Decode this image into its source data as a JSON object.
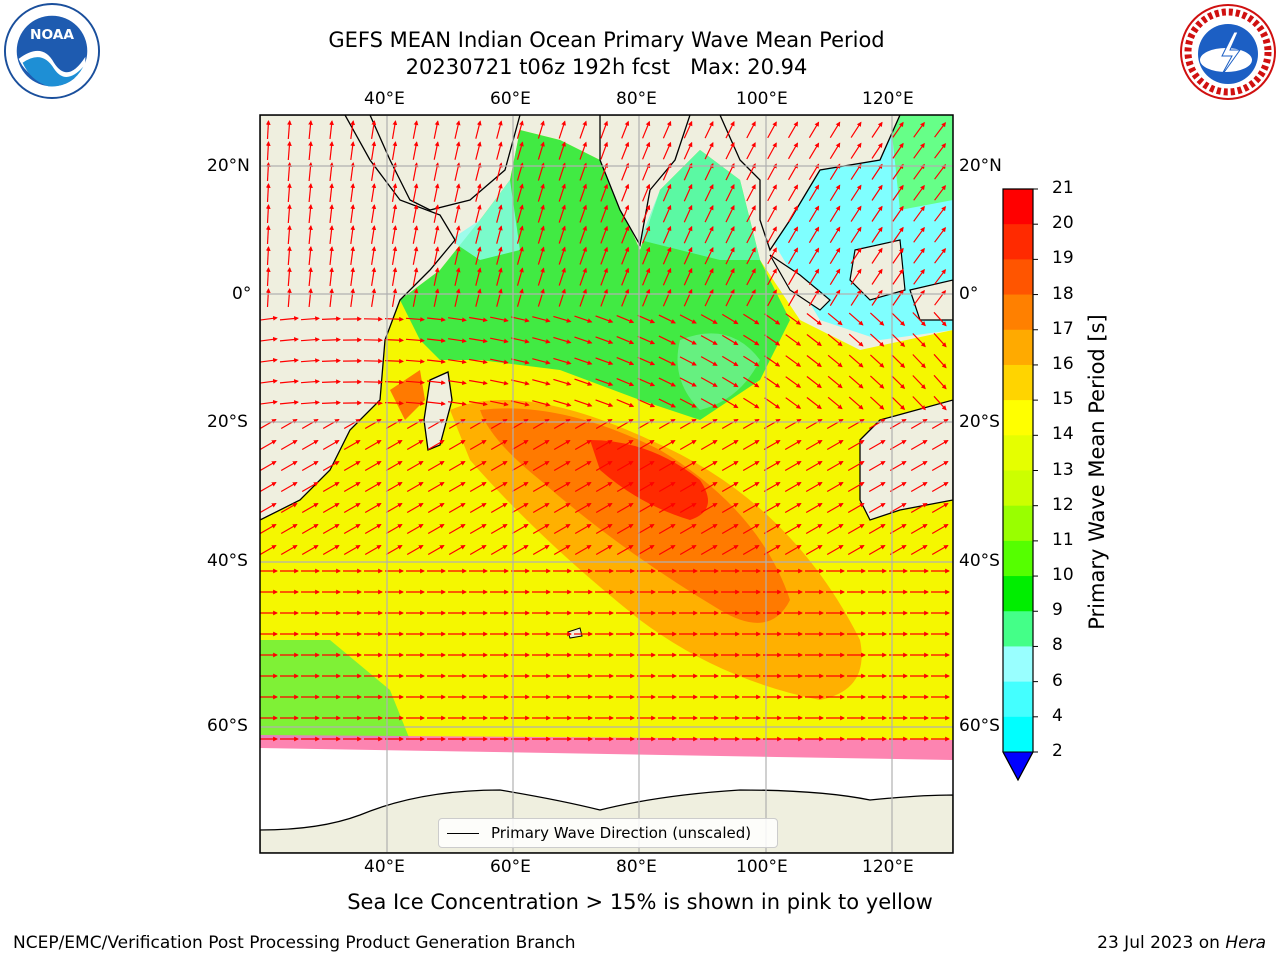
{
  "header": {
    "title_line1": "GEFS MEAN Indian Ocean Primary Wave Mean Period",
    "title_line2": "20230721 t06z 192h fcst   Max: 20.94"
  },
  "logos": {
    "left": "noaa-logo",
    "right": "national-weather-service-logo"
  },
  "map": {
    "lon_ticks_top": [
      "40°E",
      "60°E",
      "80°E",
      "100°E",
      "120°E"
    ],
    "lon_ticks_bottom": [
      "40°E",
      "60°E",
      "80°E",
      "100°E",
      "120°E"
    ],
    "lat_ticks_left": [
      "20°N",
      "0°",
      "20°S",
      "40°S",
      "60°S"
    ],
    "lat_ticks_right": [
      "20°N",
      "0°",
      "20°S",
      "40°S",
      "60°S"
    ],
    "lon_range": [
      20,
      130
    ],
    "lat_range": [
      -75,
      28
    ],
    "grid": true,
    "vector_field": "primary-wave-direction",
    "field_max": 20.94
  },
  "legend": {
    "entry": "Primary Wave Direction (unscaled)"
  },
  "colorbar": {
    "title": "Primary Wave Mean Period [s]",
    "tick_labels": [
      "21",
      "20",
      "19",
      "18",
      "17",
      "16",
      "15",
      "14",
      "13",
      "12",
      "11",
      "10",
      "9",
      "8",
      "6",
      "4",
      "2"
    ],
    "colors": [
      "#ff0000",
      "#ff2a00",
      "#ff5500",
      "#ff8000",
      "#ffaa00",
      "#ffd400",
      "#ffff00",
      "#e5ff00",
      "#ccff00",
      "#99ff00",
      "#55ff00",
      "#00ee00",
      "#44ff88",
      "#99ffff",
      "#44ffff",
      "#00ffff",
      "#00aaff",
      "#0066ff",
      "#0000ff"
    ],
    "extend": "min"
  },
  "footer": {
    "note": "Sea Ice Concentration > 15% is shown in pink to yellow",
    "credit": "NCEP/EMC/Verification Post Processing Product Generation Branch",
    "date": "23 Jul 2023 on",
    "machine": "Hera"
  }
}
